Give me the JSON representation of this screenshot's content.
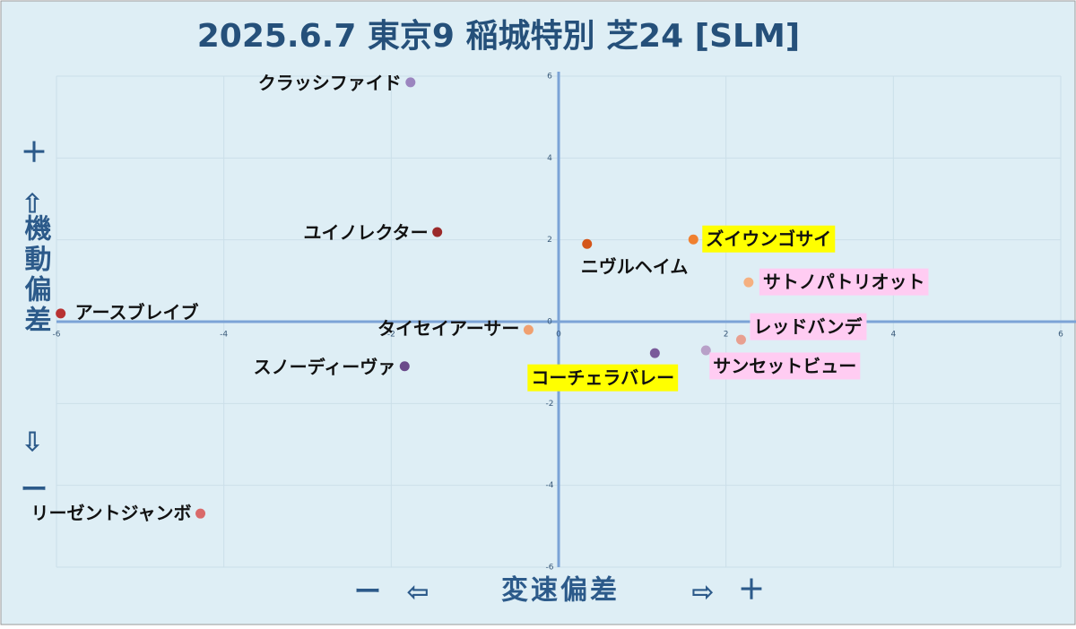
{
  "chart_data": {
    "type": "scatter",
    "title": "2025.6.7 東京9 稲城特別 芝24 [SLM]",
    "xlabel": "変速偏差",
    "ylabel": "機動偏差",
    "plus": "＋",
    "minus": "ー",
    "arrows": {
      "up": "⇧",
      "down": "⇩",
      "left": "⇦",
      "right": "⇨"
    },
    "xlim": [
      -6,
      6
    ],
    "ylim": [
      -6,
      6
    ],
    "xticks": [
      -6,
      -4,
      -2,
      0,
      2,
      4,
      6
    ],
    "yticks": [
      -6,
      -4,
      -2,
      0,
      2,
      4,
      6
    ],
    "grid": true,
    "points": [
      {
        "label": "クラッシファイド",
        "x": -1.77,
        "y": 5.85,
        "color": "#9b85bf"
      },
      {
        "label": "ユイノレクター",
        "x": -1.45,
        "y": 2.19,
        "color": "#9b2a2a"
      },
      {
        "label": "アースブレイブ",
        "x": -5.95,
        "y": 0.2,
        "color": "#b83232"
      },
      {
        "label": "タイセイアーサー",
        "x": -0.36,
        "y": -0.2,
        "color": "#f0a070"
      },
      {
        "label": "スノーディーヴァ",
        "x": -1.84,
        "y": -1.09,
        "color": "#6a4a8a"
      },
      {
        "label": "リーゼントジャンボ",
        "x": -4.28,
        "y": -4.69,
        "color": "#d96a6a"
      },
      {
        "label": "ニヴルヘイム",
        "x": 0.34,
        "y": 1.9,
        "color": "#d4561a"
      },
      {
        "label": "ズイウンゴサイ",
        "x": 1.61,
        "y": 2.01,
        "color": "#f08030",
        "highlight": "#ffff00"
      },
      {
        "label": "サトノパトリオット",
        "x": 2.27,
        "y": 0.96,
        "color": "#f5b080",
        "highlight": "#ffccf2"
      },
      {
        "label": "レッドバンデ",
        "x": 2.18,
        "y": -0.44,
        "color": "#e8a090",
        "highlight": "#ffccf2"
      },
      {
        "label": "サンセットビュー",
        "x": 1.76,
        "y": -0.7,
        "color": "#b8a0c8",
        "highlight": "#ffccf2"
      },
      {
        "label": "コーチェラバレー",
        "x": 1.15,
        "y": -0.77,
        "color": "#7a5a9a",
        "highlight": "#ffff00"
      }
    ]
  }
}
